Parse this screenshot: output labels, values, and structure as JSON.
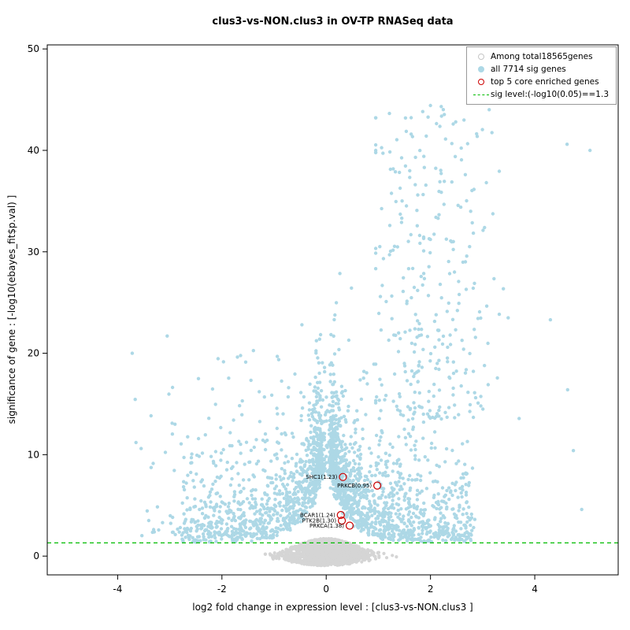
{
  "chart_data": {
    "type": "scatter",
    "subtype": "volcano-plot",
    "title": "clus3-vs-NON.clus3 in OV-TP RNASeq data",
    "xlabel": "log2 fold change in expression level : [clus3-vs-NON.clus3 ]",
    "ylabel": "significance of gene : [-log10(ebayes_fit$p.val) ]",
    "xlim": [
      -5.35,
      5.6
    ],
    "ylim": [
      -1.85,
      50.4
    ],
    "xticks": [
      -4,
      -2,
      0,
      2,
      4
    ],
    "yticks": [
      0,
      10,
      20,
      30,
      40,
      50
    ],
    "grid": false,
    "legend_position": "top-right",
    "sig_line_y": 1.3,
    "counts": {
      "total_genes": 18565,
      "sig_genes": 7714,
      "core_enriched_genes": 5
    },
    "highlighted_genes": [
      {
        "name": "SHC1",
        "label": "SHC1(1.23)",
        "x": 0.32,
        "y": 7.8
      },
      {
        "name": "PRKCB",
        "label": "PRKCB(0.95)",
        "x": 0.98,
        "y": 6.95
      },
      {
        "name": "BCAR1",
        "label": "BCAR1(1.24)",
        "x": 0.28,
        "y": 4.05
      },
      {
        "name": "PTK2B",
        "label": "PTK2B(1.30)",
        "x": 0.3,
        "y": 3.5
      },
      {
        "name": "PRKCA",
        "label": "PRKCA(1.38)",
        "x": 0.45,
        "y": 3.0
      }
    ],
    "point_clouds": {
      "seed": 20240907,
      "nonsig": {
        "n": 1400,
        "x_sd": 0.4,
        "x_max": 1.35,
        "top_amp": 1.75,
        "top_w": 0.8,
        "bottom_amp": 0.95,
        "bottom_w": 1.0
      },
      "sig_v": {
        "n": 2300,
        "right_prob": 0.55,
        "a_min": 0.1,
        "a_range": 2.7,
        "a_pow": 2.1,
        "notch_base": 1.35,
        "notch_amp": 9.5,
        "notch_w": 0.32,
        "exp_mean": 3.4,
        "left_ymax": 23,
        "right_ymax": 45,
        "x_jitter": 0.05
      },
      "right_tail": {
        "n": 300,
        "x_mean": 2.05,
        "x_sd": 0.6,
        "x_min": 0.95,
        "x_max": 3.7,
        "y_base": 13.5,
        "y_range": 31,
        "y_pow": 1.3
      },
      "left_tail": {
        "n": 70,
        "x_min": 1.2,
        "x_range": 2.55,
        "y_base": 2.0,
        "y_range": 20,
        "y_pow": 1.8
      }
    },
    "outlier_points_sig": [
      [
        4.62,
        40.6
      ],
      [
        5.06,
        40.0
      ],
      [
        4.63,
        16.4
      ],
      [
        4.74,
        10.4
      ],
      [
        4.9,
        4.6
      ],
      [
        4.3,
        23.3
      ],
      [
        -3.72,
        20.0
      ],
      [
        -3.05,
        21.7
      ],
      [
        -2.9,
        13.0
      ],
      [
        -3.55,
        10.6
      ],
      [
        -2.45,
        17.5
      ]
    ]
  },
  "legend": {
    "items": [
      {
        "label": "Among total18565genes",
        "marker": "open-circle",
        "color": "#c6c6c6"
      },
      {
        "label": "all 7714 sig genes",
        "marker": "filled-circle",
        "color": "#add8e6"
      },
      {
        "label": "top 5 core enriched genes",
        "marker": "open-circle",
        "color": "#cc0000"
      },
      {
        "label": "sig level:(-log10(0.05)==1.3",
        "marker": "dashed-line",
        "color": "#00bb00"
      }
    ]
  },
  "colors": {
    "nonsig_points": "#d5d5d5",
    "sig_points": "#add8e6",
    "highlight": "#cc0000",
    "sig_line": "#00bb00",
    "axis": "#000000"
  }
}
